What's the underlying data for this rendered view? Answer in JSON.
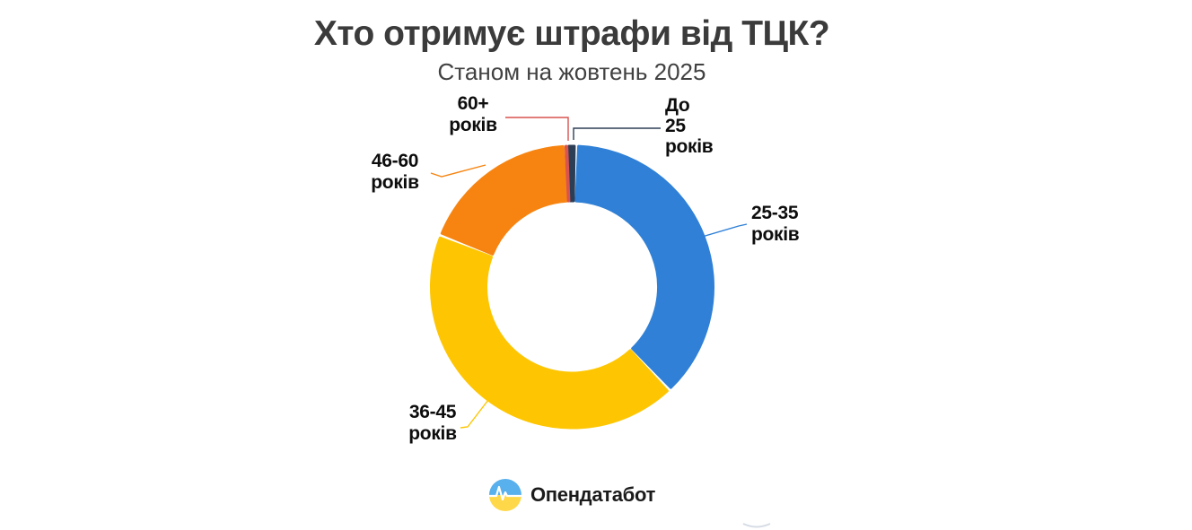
{
  "chart_data": {
    "type": "pie",
    "subtype": "donut",
    "title": "Хто отримує штрафи від ТЦК?",
    "subtitle": "Станом на жовтень 2025",
    "values_shown": false,
    "values_are_estimated_percent_shares": true,
    "direction": "clockwise",
    "start_angle_deg": -2,
    "legend_position": "callout-labels",
    "segments": [
      {
        "label": "До 25 років",
        "value": 1.0,
        "color": "#2c3e55",
        "callout_lines": [
          "До",
          "25",
          "років"
        ]
      },
      {
        "label": "25-35 років",
        "value": 37.5,
        "color": "#2f80d6",
        "callout_lines": [
          "25-35",
          "років"
        ]
      },
      {
        "label": "36-45 років",
        "value": 43.0,
        "color": "#fec602",
        "callout_lines": [
          "36-45",
          "років"
        ]
      },
      {
        "label": "46-60 років",
        "value": 18.3,
        "color": "#f78410",
        "callout_lines": [
          "46-60",
          "років"
        ]
      },
      {
        "label": "60+ років",
        "value": 0.2,
        "color": "#d9534f",
        "callout_lines": [
          "60+",
          "років"
        ]
      }
    ]
  },
  "footer": {
    "brand": "Опендатабот"
  }
}
